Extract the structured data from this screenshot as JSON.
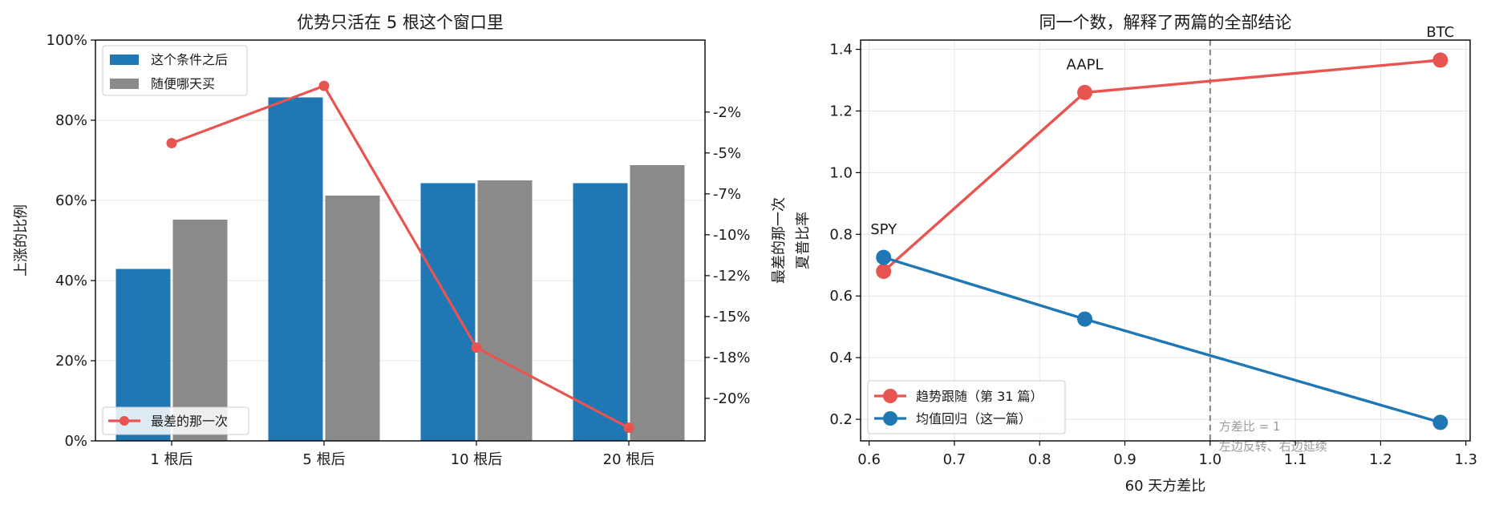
{
  "chart_data": [
    {
      "type": "bar",
      "title": "优势只活在 5 根这个窗口里",
      "categories": [
        "1 根后",
        "5 根后",
        "10 根后",
        "20 根后"
      ],
      "ylabel": "上涨的比例",
      "ylim": [
        0,
        100
      ],
      "y_ticks": [
        "0%",
        "20%",
        "40%",
        "60%",
        "80%",
        "100%"
      ],
      "series": [
        {
          "name": "这个条件之后",
          "values": [
            42.9,
            85.7,
            64.3,
            64.3
          ],
          "color": "#1f77b4"
        },
        {
          "name": "随便哪天买",
          "values": [
            55.2,
            61.2,
            65.0,
            68.8
          ],
          "color": "#8a8a8a"
        }
      ],
      "secondary": {
        "type": "line",
        "name": "最差的那一次",
        "color": "#e85450",
        "values": [
          -4.4,
          -0.9,
          -16.9,
          -21.8
        ],
        "ylabel": "最差的那一次",
        "ylim": [
          -22.6,
          1.9
        ],
        "ticks": [
          {
            "v": -2.5,
            "label": "-2%"
          },
          {
            "v": -5,
            "label": "-5%"
          },
          {
            "v": -7.5,
            "label": "-7%"
          },
          {
            "v": -10,
            "label": "-10%"
          },
          {
            "v": -12.5,
            "label": "-12%"
          },
          {
            "v": -15,
            "label": "-15%"
          },
          {
            "v": -17.5,
            "label": "-18%"
          },
          {
            "v": -20,
            "label": "-20%"
          }
        ]
      },
      "grid": "horizontal",
      "legend": [
        "top-left",
        "bottom-left"
      ]
    },
    {
      "type": "line",
      "title": "同一个数，解释了两篇的全部结论",
      "xlabel": "60 天方差比",
      "ylabel": "夏普比率",
      "xlim": [
        0.59,
        1.305
      ],
      "ylim": [
        0.13,
        1.43
      ],
      "x_ticks": [
        0.6,
        0.7,
        0.8,
        0.9,
        1.0,
        1.1,
        1.2,
        1.3
      ],
      "x_tick_labels": [
        "0.6",
        "0.7",
        "0.8",
        "0.9",
        "1.0",
        "1.1",
        "1.2",
        "1.3"
      ],
      "y_ticks": [
        0.2,
        0.4,
        0.6,
        0.8,
        1.0,
        1.2,
        1.4
      ],
      "y_tick_labels": [
        "0.2",
        "0.4",
        "0.6",
        "0.8",
        "1.0",
        "1.2",
        "1.4"
      ],
      "x": [
        0.617,
        0.853,
        1.27
      ],
      "point_labels": [
        "SPY",
        "AAPL",
        "BTC"
      ],
      "series": [
        {
          "name": "趋势跟随（第 31 篇）",
          "values": [
            0.68,
            1.26,
            1.365
          ],
          "color": "#e85450"
        },
        {
          "name": "均值回归（这一篇）",
          "values": [
            0.725,
            0.525,
            0.19
          ],
          "color": "#1f77b4"
        }
      ],
      "vline": {
        "x": 1.0,
        "text_1": "方差比 = 1",
        "text_2": "左边反转、右边延续"
      },
      "grid": "both",
      "legend": "bottom-left"
    }
  ]
}
